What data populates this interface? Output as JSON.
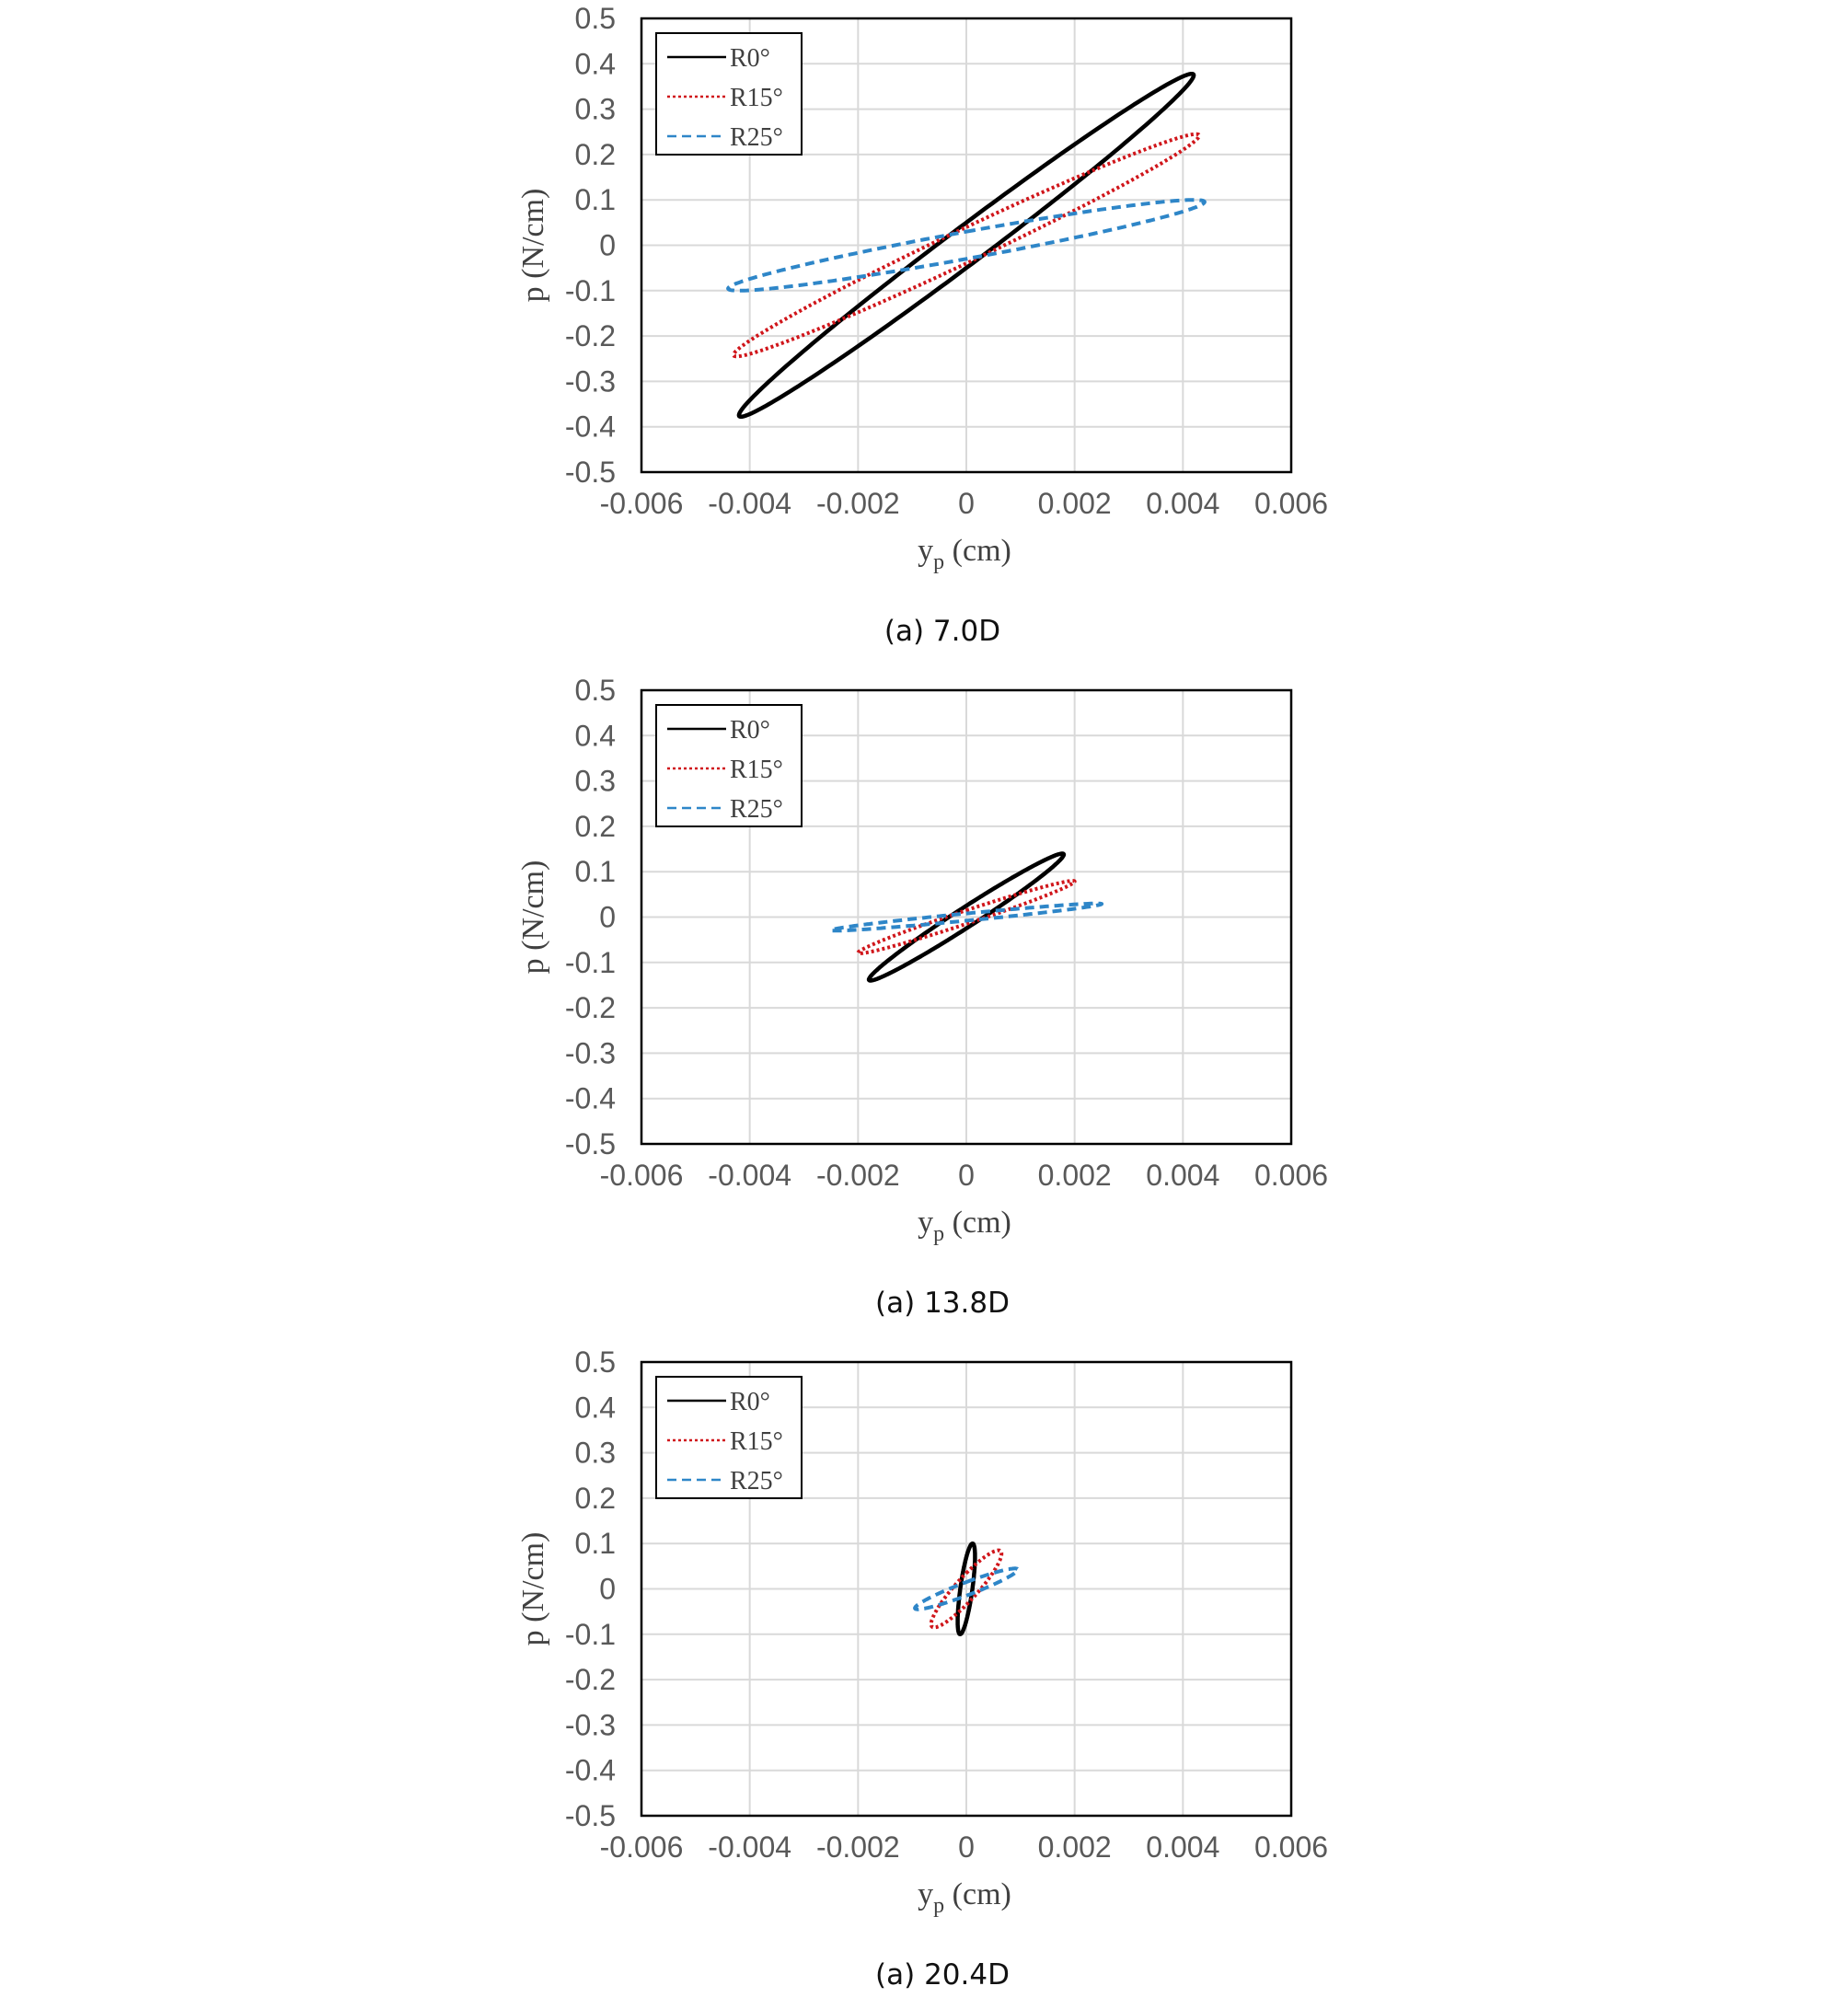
{
  "colors": {
    "R0": "#000000",
    "R15": "#d0161b",
    "R25": "#2e86c8",
    "grid": "#d9d9d9",
    "frame": "#000000"
  },
  "chart_data": [
    {
      "type": "line",
      "caption": "(a) 7.0D",
      "xlabel": "y",
      "xlabel_sub": "p",
      "xlabel_unit": " (cm)",
      "ylabel": "p (N/cm)",
      "xlim": [
        -0.006,
        0.006
      ],
      "ylim": [
        -0.5,
        0.5
      ],
      "x_ticks": [
        "-0.006",
        "-0.004",
        "-0.002",
        "0",
        "0.002",
        "0.004",
        "0.006"
      ],
      "y_ticks": [
        "0.5",
        "0.4",
        "0.3",
        "0.2",
        "0.1",
        "0",
        "-0.1",
        "-0.2",
        "-0.3",
        "-0.4",
        "-0.5"
      ],
      "grid": true,
      "legend_position": "top-left",
      "series": [
        {
          "name": "R0°",
          "style": "solid",
          "amplitude": 0.0042,
          "p_max": 0.378,
          "p_at_zero": 0.05
        },
        {
          "name": "R15°",
          "style": "dotted",
          "amplitude": 0.0043,
          "p_max": 0.245,
          "p_at_zero": 0.04
        },
        {
          "name": "R25°",
          "style": "dashed",
          "amplitude": 0.0044,
          "p_max": 0.1,
          "p_at_zero": 0.03
        }
      ]
    },
    {
      "type": "line",
      "caption": "(a) 13.8D",
      "xlabel": "y",
      "xlabel_sub": "p",
      "xlabel_unit": " (cm)",
      "ylabel": "p (N/cm)",
      "xlim": [
        -0.006,
        0.006
      ],
      "ylim": [
        -0.5,
        0.5
      ],
      "x_ticks": [
        "-0.006",
        "-0.004",
        "-0.002",
        "0",
        "0.002",
        "0.004",
        "0.006"
      ],
      "y_ticks": [
        "0.5",
        "0.4",
        "0.3",
        "0.2",
        "0.1",
        "0",
        "-0.1",
        "-0.2",
        "-0.3",
        "-0.4",
        "-0.5"
      ],
      "grid": true,
      "legend_position": "top-left",
      "series": [
        {
          "name": "R0°",
          "style": "solid",
          "amplitude": 0.0018,
          "p_max": 0.14,
          "p_at_zero": 0.025
        },
        {
          "name": "R15°",
          "style": "dotted",
          "amplitude": 0.002,
          "p_max": 0.08,
          "p_at_zero": 0.015
        },
        {
          "name": "R25°",
          "style": "dashed",
          "amplitude": 0.0025,
          "p_max": 0.03,
          "p_at_zero": 0.008
        }
      ]
    },
    {
      "type": "line",
      "caption": "(a) 20.4D",
      "xlabel": "y",
      "xlabel_sub": "p",
      "xlabel_unit": " (cm)",
      "ylabel": "p (N/cm)",
      "xlim": [
        -0.006,
        0.006
      ],
      "ylim": [
        -0.5,
        0.5
      ],
      "x_ticks": [
        "-0.006",
        "-0.004",
        "-0.002",
        "0",
        "0.002",
        "0.004",
        "0.006"
      ],
      "y_ticks": [
        "0.5",
        "0.4",
        "0.3",
        "0.2",
        "0.1",
        "0",
        "-0.1",
        "-0.2",
        "-0.3",
        "-0.4",
        "-0.5"
      ],
      "grid": true,
      "legend_position": "top-left",
      "series": [
        {
          "name": "R0°",
          "style": "solid",
          "amplitude": 0.00016,
          "p_max": 0.1,
          "p_at_zero": 0.07
        },
        {
          "name": "R15°",
          "style": "dotted",
          "amplitude": 0.00065,
          "p_max": 0.085,
          "p_at_zero": 0.035
        },
        {
          "name": "R25°",
          "style": "dashed",
          "amplitude": 0.00095,
          "p_max": 0.045,
          "p_at_zero": 0.015
        }
      ]
    }
  ]
}
